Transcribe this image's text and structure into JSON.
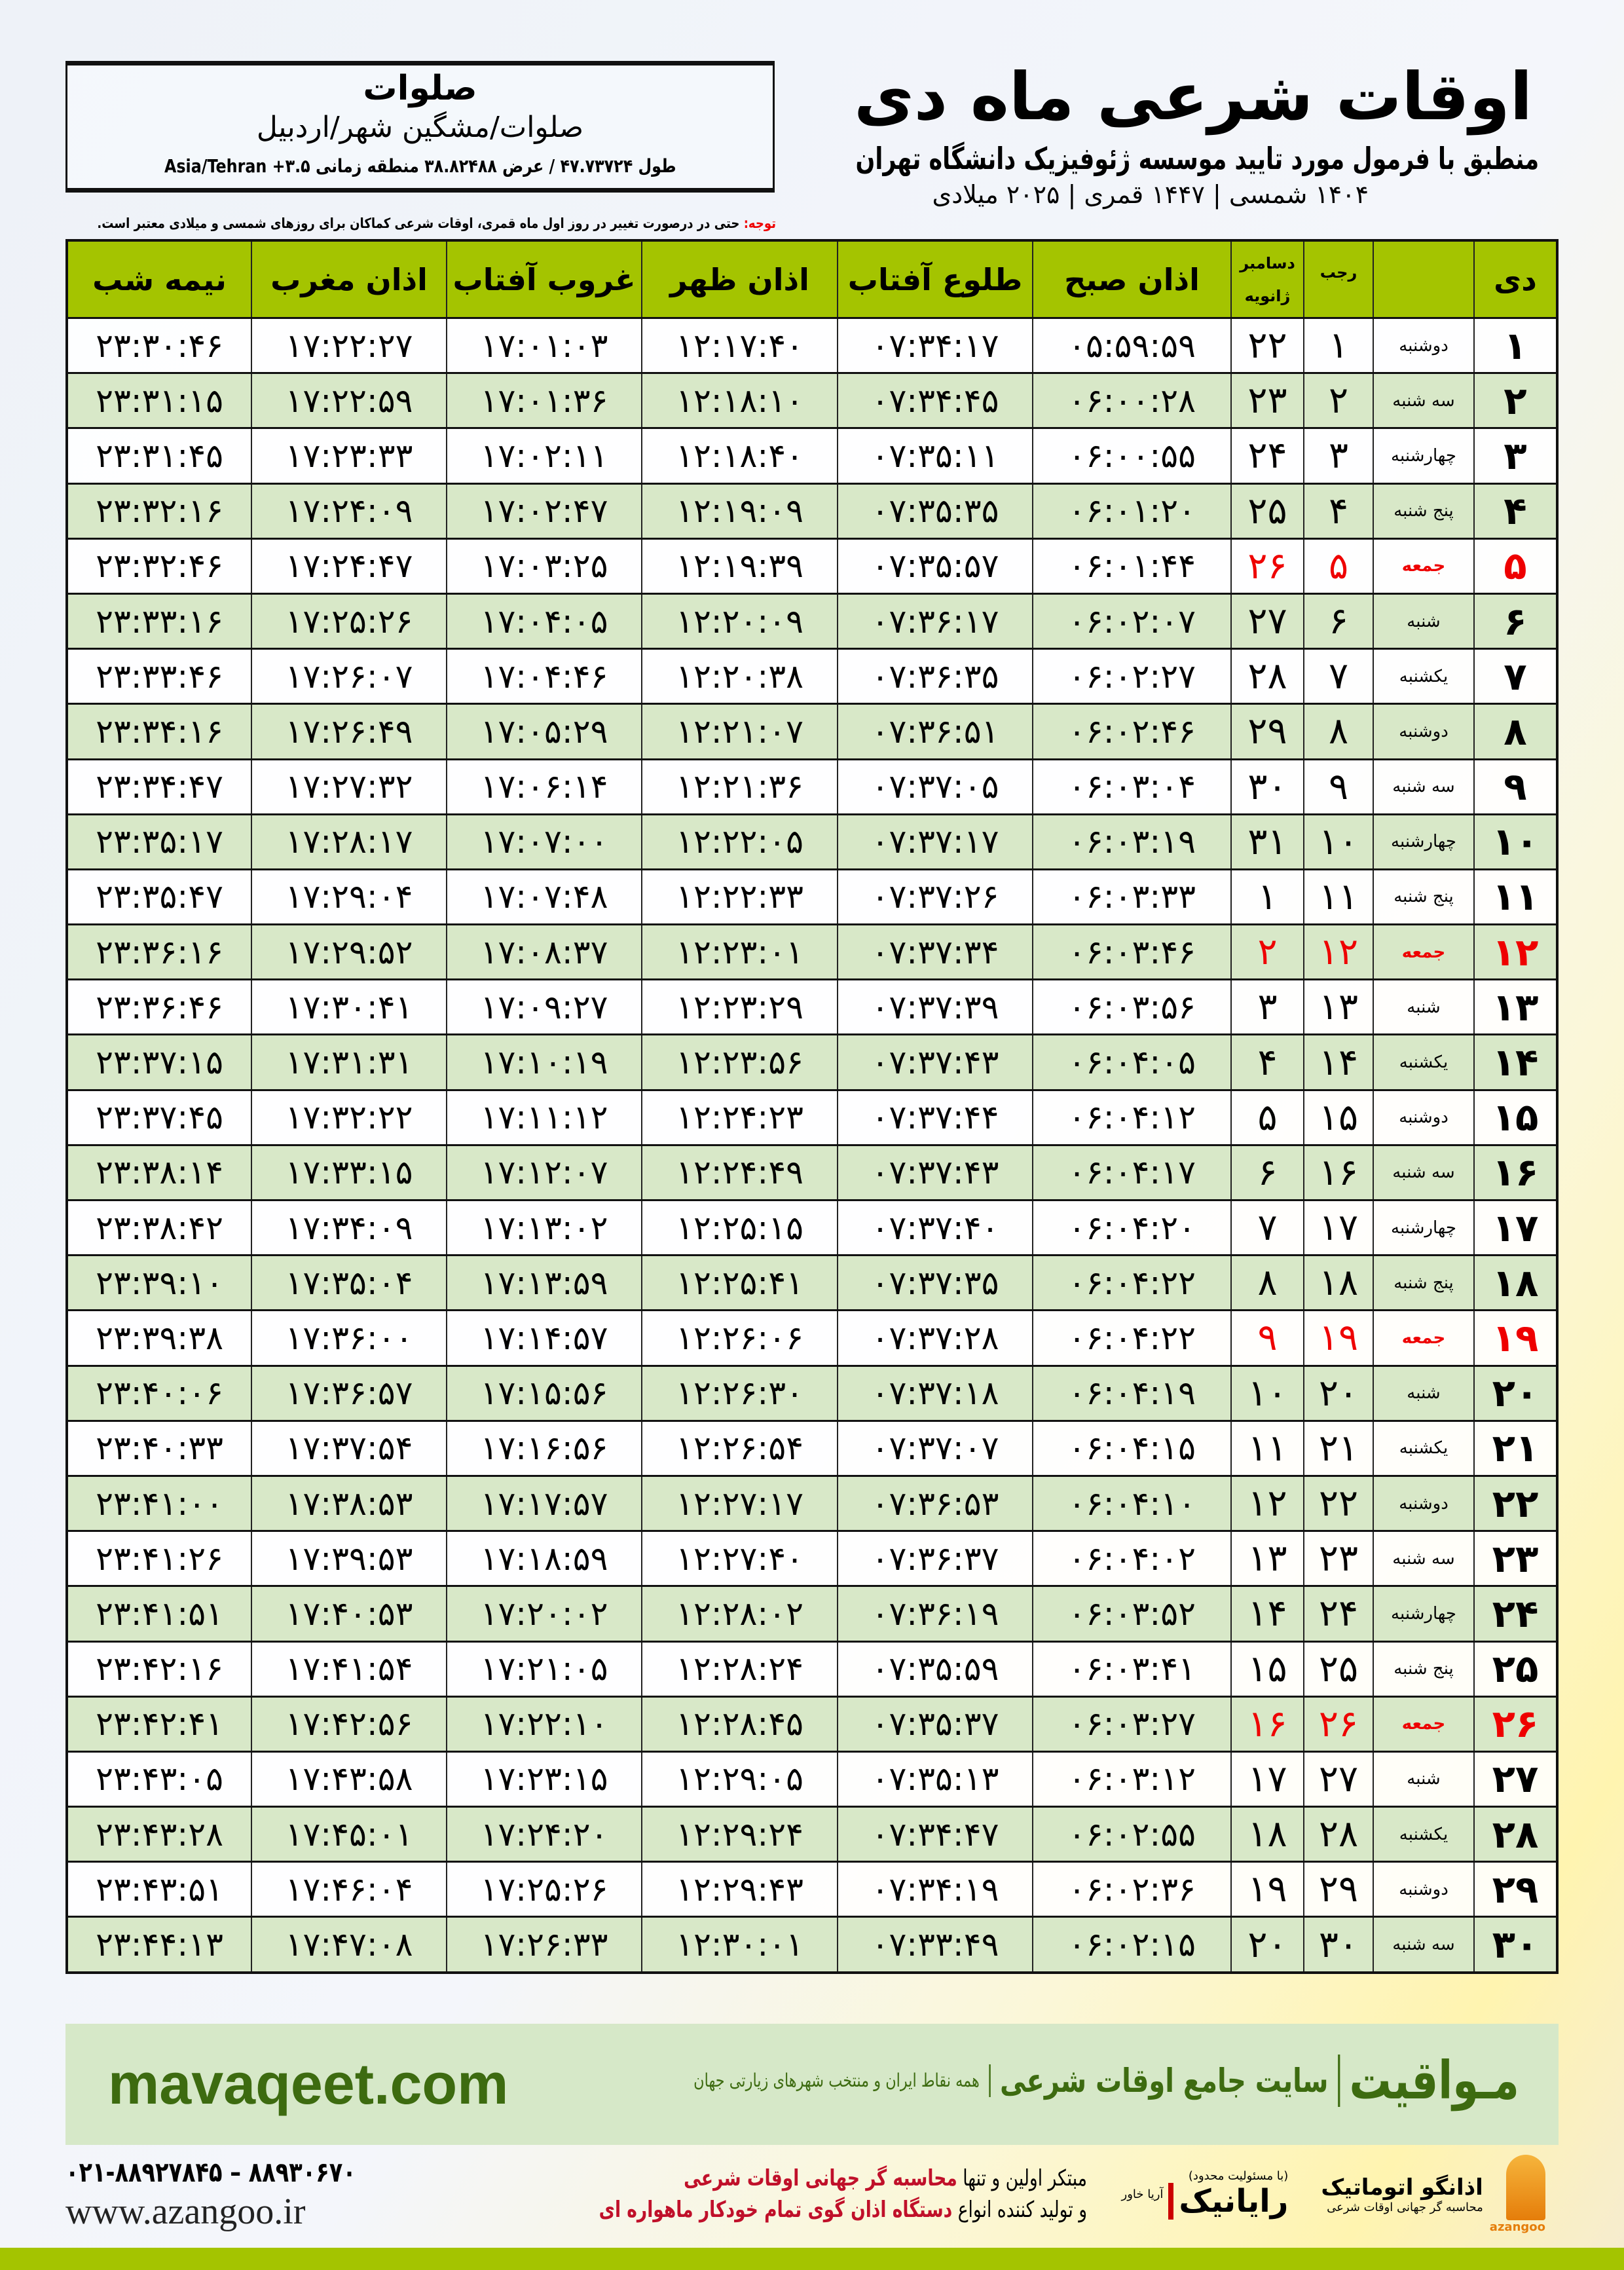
{
  "location": {
    "name": "صلوات",
    "path": "صلوات/مشگین شهر/اردبیل",
    "coords": "طول ۴۷.۷۳۷۲۴ / عرض ۳۸.۸۲۴۸۸ منطقه زمانی ۳.۵+ Asia/Tehran"
  },
  "header": {
    "title": "اوقات شرعی ماه دی",
    "subtitle": "منطبق با فرمول مورد تایید موسسه ژئوفیزیک دانشگاه تهران",
    "dates": "۱۴۰۴ شمسی | ۱۴۴۷ قمری | ۲۰۲۵ میلادی"
  },
  "note": {
    "label": "توجه:",
    "text": " حتی در درصورت تغییر در روز اول ماه قمری، اوقات شرعی کماکان برای روزهای شمسی و میلادی معتبر است."
  },
  "columns": {
    "day": "دی",
    "rajab": "رجب",
    "greg_top": "دسامبر",
    "greg_bottom": "ژانویه",
    "fajr": "اذان صبح",
    "sunrise": "طلوع آفتاب",
    "dhuhr": "اذان ظهر",
    "sunset": "غروب آفتاب",
    "maghrib": "اذان مغرب",
    "midnight": "نیمه شب"
  },
  "colors": {
    "header_green": "#a4c400",
    "row_green": "#d8e8c8",
    "holiday_red": "#e00000",
    "brand_green": "#3d6b10"
  },
  "rows": [
    [
      "۱",
      "دوشنبه",
      "۱",
      "۲۲",
      "۰۵:۵۹:۵۹",
      "۰۷:۳۴:۱۷",
      "۱۲:۱۷:۴۰",
      "۱۷:۰۱:۰۳",
      "۱۷:۲۲:۲۷",
      "۲۳:۳۰:۴۶"
    ],
    [
      "۲",
      "سه شنبه",
      "۲",
      "۲۳",
      "۰۶:۰۰:۲۸",
      "۰۷:۳۴:۴۵",
      "۱۲:۱۸:۱۰",
      "۱۷:۰۱:۳۶",
      "۱۷:۲۲:۵۹",
      "۲۳:۳۱:۱۵"
    ],
    [
      "۳",
      "چهارشنبه",
      "۳",
      "۲۴",
      "۰۶:۰۰:۵۵",
      "۰۷:۳۵:۱۱",
      "۱۲:۱۸:۴۰",
      "۱۷:۰۲:۱۱",
      "۱۷:۲۳:۳۳",
      "۲۳:۳۱:۴۵"
    ],
    [
      "۴",
      "پنج شنبه",
      "۴",
      "۲۵",
      "۰۶:۰۱:۲۰",
      "۰۷:۳۵:۳۵",
      "۱۲:۱۹:۰۹",
      "۱۷:۰۲:۴۷",
      "۱۷:۲۴:۰۹",
      "۲۳:۳۲:۱۶"
    ],
    [
      "۵",
      "جمعه",
      "۵",
      "۲۶",
      "۰۶:۰۱:۴۴",
      "۰۷:۳۵:۵۷",
      "۱۲:۱۹:۳۹",
      "۱۷:۰۳:۲۵",
      "۱۷:۲۴:۴۷",
      "۲۳:۳۲:۴۶"
    ],
    [
      "۶",
      "شنبه",
      "۶",
      "۲۷",
      "۰۶:۰۲:۰۷",
      "۰۷:۳۶:۱۷",
      "۱۲:۲۰:۰۹",
      "۱۷:۰۴:۰۵",
      "۱۷:۲۵:۲۶",
      "۲۳:۳۳:۱۶"
    ],
    [
      "۷",
      "یکشنبه",
      "۷",
      "۲۸",
      "۰۶:۰۲:۲۷",
      "۰۷:۳۶:۳۵",
      "۱۲:۲۰:۳۸",
      "۱۷:۰۴:۴۶",
      "۱۷:۲۶:۰۷",
      "۲۳:۳۳:۴۶"
    ],
    [
      "۸",
      "دوشنبه",
      "۸",
      "۲۹",
      "۰۶:۰۲:۴۶",
      "۰۷:۳۶:۵۱",
      "۱۲:۲۱:۰۷",
      "۱۷:۰۵:۲۹",
      "۱۷:۲۶:۴۹",
      "۲۳:۳۴:۱۶"
    ],
    [
      "۹",
      "سه شنبه",
      "۹",
      "۳۰",
      "۰۶:۰۳:۰۴",
      "۰۷:۳۷:۰۵",
      "۱۲:۲۱:۳۶",
      "۱۷:۰۶:۱۴",
      "۱۷:۲۷:۳۲",
      "۲۳:۳۴:۴۷"
    ],
    [
      "۱۰",
      "چهارشنبه",
      "۱۰",
      "۳۱",
      "۰۶:۰۳:۱۹",
      "۰۷:۳۷:۱۷",
      "۱۲:۲۲:۰۵",
      "۱۷:۰۷:۰۰",
      "۱۷:۲۸:۱۷",
      "۲۳:۳۵:۱۷"
    ],
    [
      "۱۱",
      "پنج شنبه",
      "۱۱",
      "۱",
      "۰۶:۰۳:۳۳",
      "۰۷:۳۷:۲۶",
      "۱۲:۲۲:۳۳",
      "۱۷:۰۷:۴۸",
      "۱۷:۲۹:۰۴",
      "۲۳:۳۵:۴۷"
    ],
    [
      "۱۲",
      "جمعه",
      "۱۲",
      "۲",
      "۰۶:۰۳:۴۶",
      "۰۷:۳۷:۳۴",
      "۱۲:۲۳:۰۱",
      "۱۷:۰۸:۳۷",
      "۱۷:۲۹:۵۲",
      "۲۳:۳۶:۱۶"
    ],
    [
      "۱۳",
      "شنبه",
      "۱۳",
      "۳",
      "۰۶:۰۳:۵۶",
      "۰۷:۳۷:۳۹",
      "۱۲:۲۳:۲۹",
      "۱۷:۰۹:۲۷",
      "۱۷:۳۰:۴۱",
      "۲۳:۳۶:۴۶"
    ],
    [
      "۱۴",
      "یکشنبه",
      "۱۴",
      "۴",
      "۰۶:۰۴:۰۵",
      "۰۷:۳۷:۴۳",
      "۱۲:۲۳:۵۶",
      "۱۷:۱۰:۱۹",
      "۱۷:۳۱:۳۱",
      "۲۳:۳۷:۱۵"
    ],
    [
      "۱۵",
      "دوشنبه",
      "۱۵",
      "۵",
      "۰۶:۰۴:۱۲",
      "۰۷:۳۷:۴۴",
      "۱۲:۲۴:۲۳",
      "۱۷:۱۱:۱۲",
      "۱۷:۳۲:۲۲",
      "۲۳:۳۷:۴۵"
    ],
    [
      "۱۶",
      "سه شنبه",
      "۱۶",
      "۶",
      "۰۶:۰۴:۱۷",
      "۰۷:۳۷:۴۳",
      "۱۲:۲۴:۴۹",
      "۱۷:۱۲:۰۷",
      "۱۷:۳۳:۱۵",
      "۲۳:۳۸:۱۴"
    ],
    [
      "۱۷",
      "چهارشنبه",
      "۱۷",
      "۷",
      "۰۶:۰۴:۲۰",
      "۰۷:۳۷:۴۰",
      "۱۲:۲۵:۱۵",
      "۱۷:۱۳:۰۲",
      "۱۷:۳۴:۰۹",
      "۲۳:۳۸:۴۲"
    ],
    [
      "۱۸",
      "پنج شنبه",
      "۱۸",
      "۸",
      "۰۶:۰۴:۲۲",
      "۰۷:۳۷:۳۵",
      "۱۲:۲۵:۴۱",
      "۱۷:۱۳:۵۹",
      "۱۷:۳۵:۰۴",
      "۲۳:۳۹:۱۰"
    ],
    [
      "۱۹",
      "جمعه",
      "۱۹",
      "۹",
      "۰۶:۰۴:۲۲",
      "۰۷:۳۷:۲۸",
      "۱۲:۲۶:۰۶",
      "۱۷:۱۴:۵۷",
      "۱۷:۳۶:۰۰",
      "۲۳:۳۹:۳۸"
    ],
    [
      "۲۰",
      "شنبه",
      "۲۰",
      "۱۰",
      "۰۶:۰۴:۱۹",
      "۰۷:۳۷:۱۸",
      "۱۲:۲۶:۳۰",
      "۱۷:۱۵:۵۶",
      "۱۷:۳۶:۵۷",
      "۲۳:۴۰:۰۶"
    ],
    [
      "۲۱",
      "یکشنبه",
      "۲۱",
      "۱۱",
      "۰۶:۰۴:۱۵",
      "۰۷:۳۷:۰۷",
      "۱۲:۲۶:۵۴",
      "۱۷:۱۶:۵۶",
      "۱۷:۳۷:۵۴",
      "۲۳:۴۰:۳۳"
    ],
    [
      "۲۲",
      "دوشنبه",
      "۲۲",
      "۱۲",
      "۰۶:۰۴:۱۰",
      "۰۷:۳۶:۵۳",
      "۱۲:۲۷:۱۷",
      "۱۷:۱۷:۵۷",
      "۱۷:۳۸:۵۳",
      "۲۳:۴۱:۰۰"
    ],
    [
      "۲۳",
      "سه شنبه",
      "۲۳",
      "۱۳",
      "۰۶:۰۴:۰۲",
      "۰۷:۳۶:۳۷",
      "۱۲:۲۷:۴۰",
      "۱۷:۱۸:۵۹",
      "۱۷:۳۹:۵۳",
      "۲۳:۴۱:۲۶"
    ],
    [
      "۲۴",
      "چهارشنبه",
      "۲۴",
      "۱۴",
      "۰۶:۰۳:۵۲",
      "۰۷:۳۶:۱۹",
      "۱۲:۲۸:۰۲",
      "۱۷:۲۰:۰۲",
      "۱۷:۴۰:۵۳",
      "۲۳:۴۱:۵۱"
    ],
    [
      "۲۵",
      "پنج شنبه",
      "۲۵",
      "۱۵",
      "۰۶:۰۳:۴۱",
      "۰۷:۳۵:۵۹",
      "۱۲:۲۸:۲۴",
      "۱۷:۲۱:۰۵",
      "۱۷:۴۱:۵۴",
      "۲۳:۴۲:۱۶"
    ],
    [
      "۲۶",
      "جمعه",
      "۲۶",
      "۱۶",
      "۰۶:۰۳:۲۷",
      "۰۷:۳۵:۳۷",
      "۱۲:۲۸:۴۵",
      "۱۷:۲۲:۱۰",
      "۱۷:۴۲:۵۶",
      "۲۳:۴۲:۴۱"
    ],
    [
      "۲۷",
      "شنبه",
      "۲۷",
      "۱۷",
      "۰۶:۰۳:۱۲",
      "۰۷:۳۵:۱۳",
      "۱۲:۲۹:۰۵",
      "۱۷:۲۳:۱۵",
      "۱۷:۴۳:۵۸",
      "۲۳:۴۳:۰۵"
    ],
    [
      "۲۸",
      "یکشنبه",
      "۲۸",
      "۱۸",
      "۰۶:۰۲:۵۵",
      "۰۷:۳۴:۴۷",
      "۱۲:۲۹:۲۴",
      "۱۷:۲۴:۲۰",
      "۱۷:۴۵:۰۱",
      "۲۳:۴۳:۲۸"
    ],
    [
      "۲۹",
      "دوشنبه",
      "۲۹",
      "۱۹",
      "۰۶:۰۲:۳۶",
      "۰۷:۳۴:۱۹",
      "۱۲:۲۹:۴۳",
      "۱۷:۲۵:۲۶",
      "۱۷:۴۶:۰۴",
      "۲۳:۴۳:۵۱"
    ],
    [
      "۳۰",
      "سه شنبه",
      "۳۰",
      "۲۰",
      "۰۶:۰۲:۱۵",
      "۰۷:۳۳:۴۹",
      "۱۲:۳۰:۰۱",
      "۱۷:۲۶:۳۳",
      "۱۷:۴۷:۰۸",
      "۲۳:۴۴:۱۳"
    ]
  ],
  "holiday_weekday": "جمعه",
  "banner": {
    "brand": "مـواقیت",
    "tagline": "سایت جامع اوقات شرعی",
    "sub": "همه نقاط ایران و منتخب شهرهای زیارتی جهان",
    "site": "mavaqeet.com"
  },
  "footer": {
    "phone": "۰۲۱-۸۸۹۲۷۸۴۵ – ۸۸۹۳۰۶۷۰",
    "web": "www.azangoo.ir",
    "promo1_a": "مبتکر اولین و تنها ",
    "promo1_b": "محاسبه گر جهانی اوقات شرعی",
    "promo2_a": "و تولید کننده انواع ",
    "promo2_b": "دستگاه اذان گوی تمام خودکار ماهواره ای",
    "logo1": "اذانگو اتوماتیک",
    "logo1_sub": "محاسبه گر جهانی اوقات شرعی",
    "logo1_en": "azangoo",
    "logo2": "رایانیک",
    "logo2_sub": "آریا خاور",
    "logo2_top": "(با مسئولیت محدود)"
  }
}
